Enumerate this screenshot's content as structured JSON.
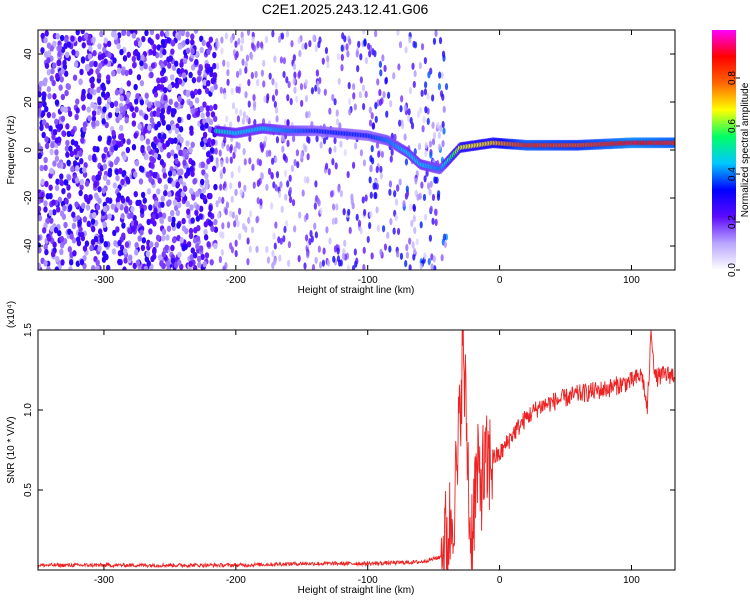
{
  "title": "C2E1.2025.243.12.41.G06",
  "chart_data": [
    {
      "type": "heatmap",
      "xlabel": "Height of straight line (km)",
      "ylabel": "Frequency (Hz)",
      "xlim": [
        -350,
        133
      ],
      "ylim": [
        -50,
        50
      ],
      "xticks": [
        -300,
        -200,
        -100,
        0,
        100
      ],
      "yticks": [
        -40,
        -20,
        0,
        20,
        40
      ],
      "colorbar": {
        "label": "Normalized spectral amplitude",
        "range": [
          0,
          1
        ],
        "ticks": [
          "0.0",
          "0.2",
          "0.4",
          "0.6",
          "0.8"
        ],
        "colors": [
          "#ffffff",
          "#b9a6ff",
          "#5d0aff",
          "#0000ff",
          "#00c8ff",
          "#00ff66",
          "#ffff00",
          "#ff6600",
          "#ff0000",
          "#ff00ff"
        ]
      },
      "noise_region": {
        "x": [
          -350,
          -215
        ],
        "amplitude": 0.3
      },
      "ridge": [
        {
          "x": -215,
          "y": 8,
          "amp": 0.5
        },
        {
          "x": -200,
          "y": 7,
          "amp": 0.45
        },
        {
          "x": -180,
          "y": 9,
          "amp": 0.45
        },
        {
          "x": -160,
          "y": 8,
          "amp": 0.4
        },
        {
          "x": -140,
          "y": 8,
          "amp": 0.35
        },
        {
          "x": -120,
          "y": 7,
          "amp": 0.35
        },
        {
          "x": -100,
          "y": 6,
          "amp": 0.35
        },
        {
          "x": -85,
          "y": 4,
          "amp": 0.4
        },
        {
          "x": -70,
          "y": -1,
          "amp": 0.45
        },
        {
          "x": -60,
          "y": -6,
          "amp": 0.45
        },
        {
          "x": -45,
          "y": -8,
          "amp": 0.4
        },
        {
          "x": -30,
          "y": 1,
          "amp": 0.65
        },
        {
          "x": -5,
          "y": 3,
          "amp": 0.7
        },
        {
          "x": 20,
          "y": 2,
          "amp": 0.85
        },
        {
          "x": 60,
          "y": 2,
          "amp": 0.8
        },
        {
          "x": 100,
          "y": 3,
          "amp": 0.9
        },
        {
          "x": 133,
          "y": 3,
          "amp": 0.85
        }
      ]
    },
    {
      "type": "line",
      "xlabel": "Height of straight line (km)",
      "ylabel": "SNR (10 * V/V)",
      "yscale_label": "(x10⁴)",
      "xlim": [
        -350,
        133
      ],
      "ylim": [
        0,
        1.5
      ],
      "xticks": [
        -300,
        -200,
        -100,
        0,
        100
      ],
      "yticks": [
        "0.5",
        "1.0",
        "1.5"
      ],
      "line_color": "#ee2222",
      "series": [
        {
          "x": [
            -350,
            -300,
            -250,
            -200,
            -150,
            -100,
            -60,
            -45,
            -38,
            -32,
            -28,
            -25,
            -22,
            -18,
            -12,
            -5,
            0,
            10,
            20,
            30,
            40,
            60,
            80,
            100,
            108,
            112,
            115,
            118,
            125,
            133
          ],
          "values": [
            0.03,
            0.03,
            0.03,
            0.03,
            0.04,
            0.04,
            0.05,
            0.08,
            0.25,
            0.6,
            1.4,
            0.9,
            0.15,
            0.55,
            0.6,
            0.7,
            0.72,
            0.85,
            0.95,
            1.02,
            1.05,
            1.1,
            1.13,
            1.18,
            1.22,
            1.0,
            1.5,
            1.2,
            1.22,
            1.22
          ]
        }
      ]
    }
  ]
}
